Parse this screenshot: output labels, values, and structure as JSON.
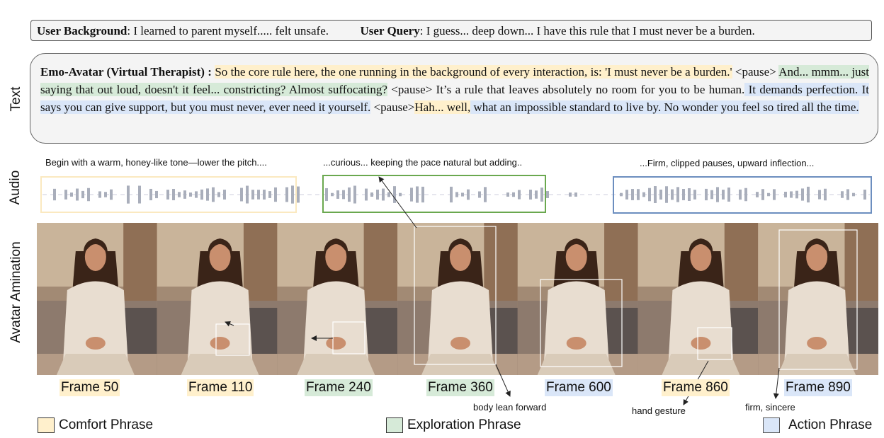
{
  "user_info": {
    "background_label": "User Background",
    "background_text": ": I learned to parent myself..... felt unsafe.",
    "query_label": "User Query",
    "query_text": ": I guess... deep down... I have this rule that I must never be a burden."
  },
  "side_labels": {
    "text": "Text",
    "audio": "Audio",
    "animation": "Avatar Amination"
  },
  "therapist": {
    "speaker": "Emo-Avatar (Virtual Therapist) :",
    "segments": [
      {
        "text": "So the core rule here, the one running in the background of every interaction, is: 'I must never be a burden.'",
        "phrase": "comfort"
      },
      {
        "text": " <pause> ",
        "phrase": "none"
      },
      {
        "text": "And... mmm... just saying that out loud, doesn't it feel... constricting? Almost suffocating?",
        "phrase": "exploration"
      },
      {
        "text": " <pause> It’s a rule that leaves absolutely no room for you to be human.",
        "phrase": "none"
      },
      {
        "text": " It demands perfection. It says you can give support, but you must never, ever need it yourself.",
        "phrase": "action"
      },
      {
        "text": " <pause>",
        "phrase": "none"
      },
      {
        "text": "Hah... well,",
        "phrase": "comfort"
      },
      {
        "text": " what an impossible standard to live by. No wonder you feel so tired all the time.",
        "phrase": "action"
      }
    ]
  },
  "audio": {
    "captions": [
      "Begin with a warm, honey-like tone—lower the pitch....",
      "...curious... keeping the pace natural but adding..",
      "...Firm, clipped pauses, upward inflection..."
    ]
  },
  "frames": [
    {
      "label": "Frame 50",
      "phrase": "comfort"
    },
    {
      "label": "Frame 110",
      "phrase": "comfort"
    },
    {
      "label": "Frame 240",
      "phrase": "exploration"
    },
    {
      "label": "Frame 360",
      "phrase": "exploration"
    },
    {
      "label": "Frame 600",
      "phrase": "action"
    },
    {
      "label": "Frame 860",
      "phrase": "comfort"
    },
    {
      "label": "Frame 890",
      "phrase": "action"
    }
  ],
  "annotations": [
    "body lean forward",
    "hand gesture",
    "firm, sincere"
  ],
  "legend": [
    {
      "label": "Comfort Phrase",
      "color": "#fff0cc"
    },
    {
      "label": "Exploration Phrase",
      "color": "#d6ead8"
    },
    {
      "label": "Action Phrase",
      "color": "#dae6f8"
    }
  ],
  "colors": {
    "comfort": "#fff0cc",
    "exploration": "#d6ead8",
    "action": "#dae6f8",
    "comfort_border": "#fbe9c0",
    "exploration_border": "#6aa84f",
    "action_border": "#6c8ebf"
  }
}
